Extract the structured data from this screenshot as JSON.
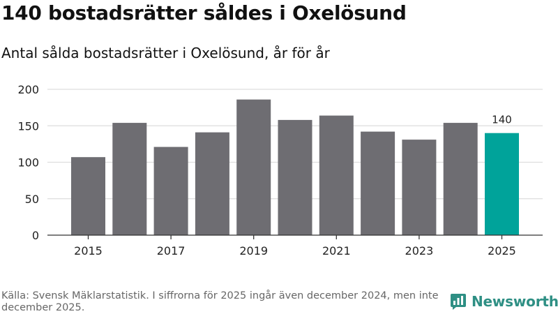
{
  "header": {
    "title": "140 bostadsrätter såldes i Oxelösund",
    "subtitle": "Antal sålda bostadsrätter i Oxelösund, år för år"
  },
  "chart_data": {
    "type": "bar",
    "title": "140 bostadsrätter såldes i Oxelösund",
    "subtitle": "Antal sålda bostadsrätter i Oxelösund, år för år",
    "xlabel": "",
    "ylabel": "",
    "categories": [
      "2015",
      "2016",
      "2017",
      "2018",
      "2019",
      "2020",
      "2021",
      "2022",
      "2023",
      "2024",
      "2025"
    ],
    "values": [
      107,
      154,
      121,
      141,
      186,
      158,
      164,
      142,
      131,
      154,
      140
    ],
    "x_tick_labels": [
      "2015",
      "2017",
      "2019",
      "2021",
      "2023",
      "2025"
    ],
    "y_ticks": [
      0,
      50,
      100,
      150,
      200
    ],
    "ylim": [
      0,
      200
    ],
    "grid": true,
    "highlight_index": 10,
    "data_labels": [
      {
        "index": 10,
        "text": "140"
      }
    ],
    "colors": {
      "bar": "#6e6d72",
      "highlight": "#00a39a",
      "grid": "#dddddd",
      "axis": "#333333"
    }
  },
  "footer": {
    "source": "Källa: Svensk Mäklarstatistik. I siffrorna för 2025 ingår även december 2024, men inte december 2025.",
    "brand_name": "Newsworthy",
    "brand_icon": "bar-chart-speech-icon",
    "brand_color": "#2e8f84"
  }
}
